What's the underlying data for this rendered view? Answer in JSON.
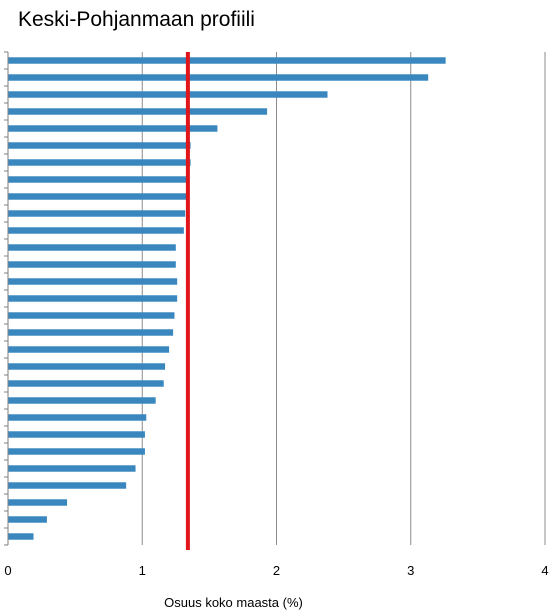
{
  "chart_data": {
    "type": "bar",
    "orientation": "horizontal",
    "title": "Keski-Pohjanmaan profiili",
    "xlabel": "Osuus koko maasta (%)",
    "ylabel": "",
    "xlim": [
      0,
      4
    ],
    "x_ticks": [
      "0",
      "1",
      "2",
      "3",
      "4"
    ],
    "grid": "vertical major gridlines",
    "legend": "none",
    "colors": {
      "bar": "#3a87bf",
      "reference_line": "#e0161b",
      "grid": "#8c8c8c",
      "axis": "#7f7f7f"
    },
    "reference_line": {
      "x": 1.34
    },
    "values": [
      3.26,
      3.13,
      2.38,
      1.93,
      1.56,
      1.36,
      1.36,
      1.34,
      1.34,
      1.32,
      1.31,
      1.25,
      1.25,
      1.26,
      1.26,
      1.24,
      1.23,
      1.2,
      1.17,
      1.16,
      1.1,
      1.03,
      1.02,
      1.02,
      0.95,
      0.88,
      0.44,
      0.29,
      0.19
    ]
  }
}
